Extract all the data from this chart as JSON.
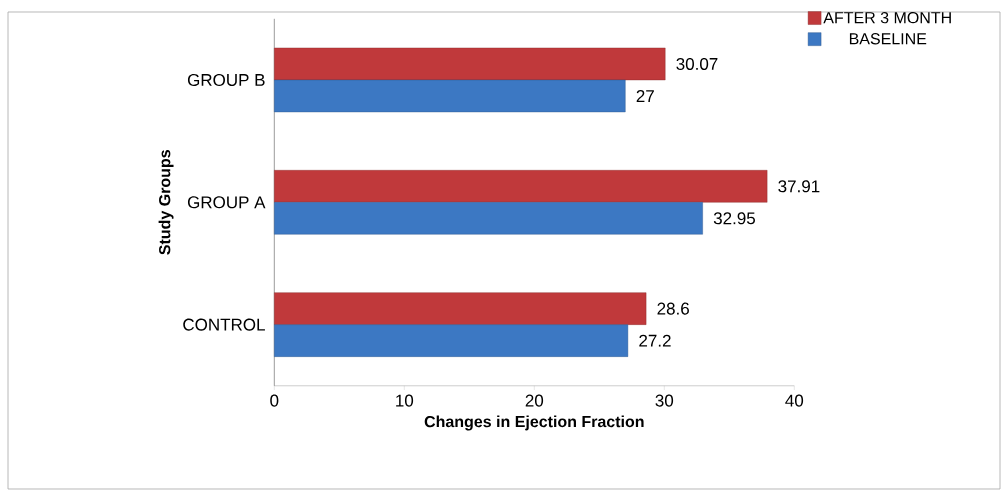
{
  "chart_data": {
    "type": "bar",
    "orientation": "horizontal",
    "xlabel": "Changes in Ejection Fraction",
    "ylabel": "Study Groups",
    "categories": [
      "GROUP B",
      "GROUP A",
      "CONTROL"
    ],
    "series": [
      {
        "name": "AFTER 3 MONTH",
        "color": "#c0393b",
        "values": [
          30.07,
          37.91,
          28.6
        ]
      },
      {
        "name": "BASELINE",
        "color": "#3c78c3",
        "values": [
          27,
          32.95,
          27.2
        ]
      }
    ],
    "xlim": [
      0,
      40
    ],
    "xticks": [
      0,
      10,
      20,
      30,
      40
    ],
    "data_labels": true,
    "legend": "top right",
    "grid": false
  }
}
